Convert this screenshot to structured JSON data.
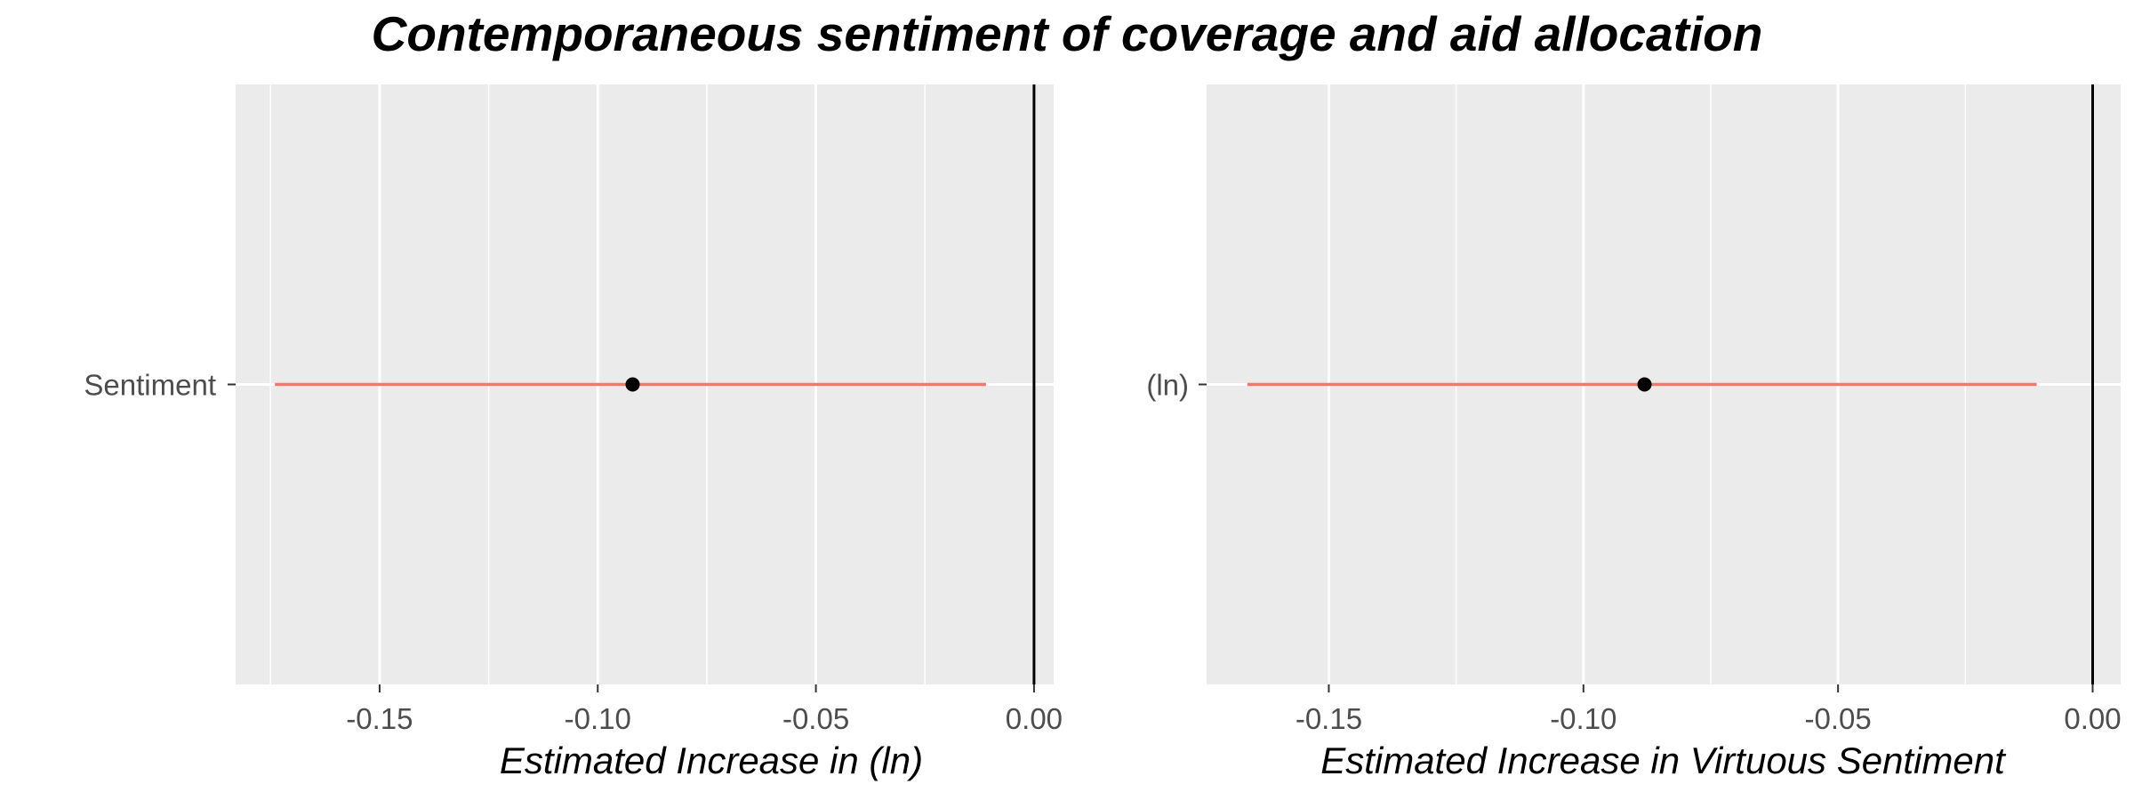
{
  "title": "Contemporaneous sentiment of coverage and aid allocation",
  "colors": {
    "panel_background": "#ebebeb",
    "gridline": "#ffffff",
    "interval": "#f8766d",
    "point": "#000000",
    "reference_line": "#000000"
  },
  "chart_data": [
    {
      "type": "scatter",
      "variant": "coefficient-plot",
      "title": "",
      "xlabel": "Estimated Increase in (ln)",
      "ylabel": "",
      "categories": [
        "Sentiment"
      ],
      "series": [
        {
          "estimate": -0.092,
          "ci_low": -0.174,
          "ci_high": -0.011
        }
      ],
      "xlim": [
        -0.183,
        0.0045
      ],
      "x_ticks": [
        -0.15,
        -0.1,
        -0.05,
        0.0
      ],
      "x_tick_labels": [
        "-0.15",
        "-0.10",
        "-0.05",
        "0.00"
      ],
      "reference_line_x": 0,
      "grid": true,
      "legend": "none"
    },
    {
      "type": "scatter",
      "variant": "coefficient-plot",
      "title": "",
      "xlabel": "Estimated Increase in Virtuous Sentiment",
      "ylabel": "",
      "categories": [
        "(ln)"
      ],
      "series": [
        {
          "estimate": -0.088,
          "ci_low": -0.166,
          "ci_high": -0.011
        }
      ],
      "xlim": [
        -0.174,
        0.0055
      ],
      "x_ticks": [
        -0.15,
        -0.1,
        -0.05,
        0.0
      ],
      "x_tick_labels": [
        "-0.15",
        "-0.10",
        "-0.05",
        "0.00"
      ],
      "reference_line_x": 0,
      "grid": true,
      "legend": "none"
    }
  ]
}
